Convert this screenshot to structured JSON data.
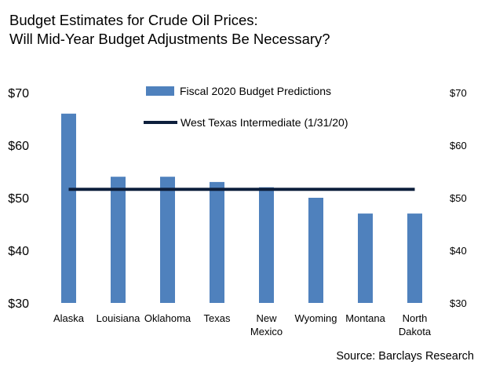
{
  "title": {
    "line1": "Budget Estimates for Crude Oil Prices:",
    "line2": "Will Mid-Year Budget Adjustments Be Necessary?"
  },
  "source": "Source: Barclays Research",
  "chart_data": {
    "type": "bar",
    "categories": [
      [
        "Alaska"
      ],
      [
        "Louisiana"
      ],
      [
        "Oklahoma"
      ],
      [
        "Texas"
      ],
      [
        "New",
        "Mexico"
      ],
      [
        "Wyoming"
      ],
      [
        "Montana"
      ],
      [
        "North",
        "Dakota"
      ]
    ],
    "series": [
      {
        "name": "Fiscal 2020 Budget Predictions",
        "type": "bar",
        "color": "#4f81bd",
        "values": [
          66,
          54,
          54,
          53,
          52,
          50,
          47,
          47
        ]
      },
      {
        "name": "West Texas Intermediate (1/31/20)",
        "type": "line",
        "color": "#0d1f3c",
        "value": 51.6
      }
    ],
    "ylim": [
      30,
      70
    ],
    "yticks_left": [
      "$30",
      "$40",
      "$50",
      "$60",
      "$70"
    ],
    "yticks_right": [
      "$30",
      "$40",
      "$50",
      "$60",
      "$70"
    ],
    "ytick_values": [
      30,
      40,
      50,
      60,
      70
    ],
    "grid": false,
    "legend": "top-center"
  }
}
